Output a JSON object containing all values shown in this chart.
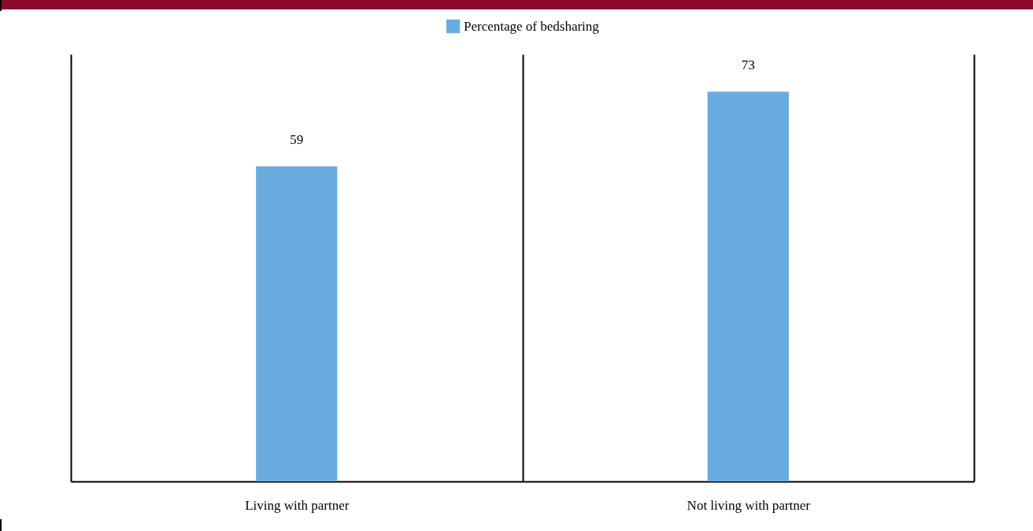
{
  "chart_data": {
    "type": "bar",
    "categories": [
      "Living with partner",
      "Not living with partner"
    ],
    "series": [
      {
        "name": "Percentage of bedsharing",
        "color": "#6aabdf",
        "values": [
          59,
          73
        ]
      }
    ],
    "data_labels": true,
    "grid": "x",
    "legend": "top"
  }
}
